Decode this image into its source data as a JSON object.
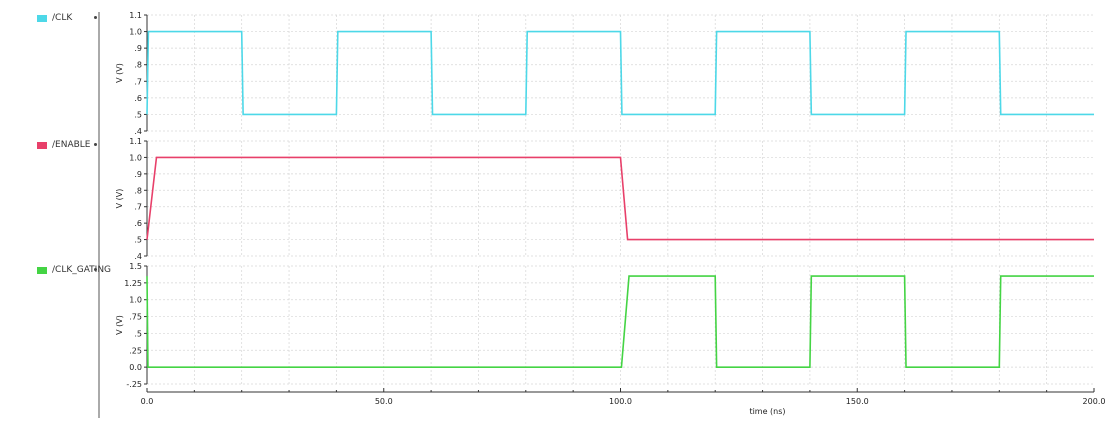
{
  "chart_data": {
    "type": "line",
    "xlabel": "time (ns)",
    "xlim": [
      0,
      200
    ],
    "xticks": [
      {
        "value": 0,
        "label": "0.0"
      },
      {
        "value": 50,
        "label": "50.0"
      },
      {
        "value": 100,
        "label": "100.0"
      },
      {
        "value": 150,
        "label": "150.0"
      },
      {
        "value": 200,
        "label": "200.0"
      }
    ],
    "grid": true,
    "panels": [
      {
        "name": "/CLK",
        "color": "#4dd8e8",
        "ylabel": "V (V)",
        "ylim": [
          0.4,
          1.1
        ],
        "yticks": [
          {
            "value": 1.1,
            "label": "1.1"
          },
          {
            "value": 1.0,
            "label": "1.0"
          },
          {
            "value": 0.9,
            "label": ".9"
          },
          {
            "value": 0.8,
            "label": ".8"
          },
          {
            "value": 0.7,
            "label": ".7"
          },
          {
            "value": 0.6,
            "label": ".6"
          },
          {
            "value": 0.5,
            "label": ".5"
          },
          {
            "value": 0.4,
            "label": ".4"
          }
        ],
        "x": [
          0,
          0.3,
          20,
          20.3,
          40,
          40.3,
          60,
          60.3,
          80,
          80.3,
          100,
          100.3,
          120,
          120.3,
          140,
          140.3,
          160,
          160.3,
          180,
          180.3,
          200
        ],
        "y": [
          0.5,
          1.0,
          1.0,
          0.5,
          0.5,
          1.0,
          1.0,
          0.5,
          0.5,
          1.0,
          1.0,
          0.5,
          0.5,
          1.0,
          1.0,
          0.5,
          0.5,
          1.0,
          1.0,
          0.5,
          0.5
        ]
      },
      {
        "name": "/ENABLE",
        "color": "#e8406a",
        "ylabel": "V (V)",
        "ylim": [
          0.4,
          1.1
        ],
        "yticks": [
          {
            "value": 1.1,
            "label": "1.1"
          },
          {
            "value": 1.0,
            "label": "1.0"
          },
          {
            "value": 0.9,
            "label": ".9"
          },
          {
            "value": 0.8,
            "label": ".8"
          },
          {
            "value": 0.7,
            "label": ".7"
          },
          {
            "value": 0.6,
            "label": ".6"
          },
          {
            "value": 0.5,
            "label": ".5"
          },
          {
            "value": 0.4,
            "label": ".4"
          }
        ],
        "x": [
          0,
          2,
          100,
          101.5,
          200
        ],
        "y": [
          0.5,
          1.0,
          1.0,
          0.5,
          0.5
        ]
      },
      {
        "name": "/CLK_GATING",
        "color": "#44d444",
        "ylabel": "V (V)",
        "ylim": [
          -0.25,
          1.5
        ],
        "yticks": [
          {
            "value": 1.5,
            "label": "1.5"
          },
          {
            "value": 1.25,
            "label": "1.25"
          },
          {
            "value": 1.0,
            "label": "1.0"
          },
          {
            "value": 0.75,
            "label": ".75"
          },
          {
            "value": 0.5,
            "label": ".5"
          },
          {
            "value": 0.25,
            "label": ".25"
          },
          {
            "value": 0.0,
            "label": "0.0"
          },
          {
            "value": -0.25,
            "label": "-.25"
          }
        ],
        "x": [
          0,
          0.2,
          100.2,
          101.8,
          120,
          120.3,
          140,
          140.3,
          160,
          160.3,
          180,
          180.3,
          200
        ],
        "y": [
          1.35,
          0.0,
          0.0,
          1.35,
          1.35,
          0.0,
          0.0,
          1.35,
          1.35,
          0.0,
          0.0,
          1.35,
          1.35
        ]
      }
    ]
  }
}
